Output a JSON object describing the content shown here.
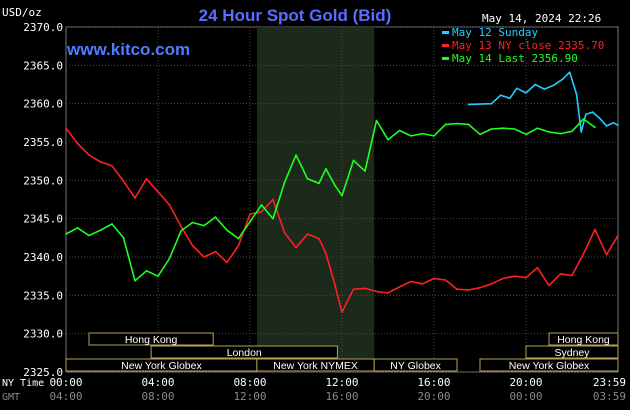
{
  "header": {
    "title": "24 Hour Spot Gold (Bid)",
    "unit": "USD/oz",
    "datetime": "May 14, 2024 22:26",
    "watermark": "www.kitco.com"
  },
  "legend": [
    {
      "label": "May 12 Sunday",
      "color": "#20d0ff"
    },
    {
      "label": "May 13 NY close 2335.70",
      "color": "#ff2020"
    },
    {
      "label": "May 14 Last 2356.90",
      "color": "#20ff20"
    }
  ],
  "chart_data": {
    "type": "line",
    "title": "24 Hour Spot Gold (Bid)",
    "ylabel": "USD/oz",
    "ylim": [
      2325,
      2370
    ],
    "yticks": [
      "2325.0",
      "2330.0",
      "2335.0",
      "2340.0",
      "2345.0",
      "2350.0",
      "2355.0",
      "2360.0",
      "2365.0",
      "2370.0"
    ],
    "xlim": [
      0,
      24
    ],
    "x_time_rows": [
      {
        "label": "NY Time",
        "ticks": [
          "00:00",
          "04:00",
          "08:00",
          "12:00",
          "16:00",
          "20:00",
          "23:59"
        ]
      },
      {
        "label": "GMT",
        "ticks": [
          "04:00",
          "08:00",
          "12:00",
          "16:00",
          "20:00",
          "00:00",
          "03:59"
        ]
      }
    ],
    "highlight_hours": [
      8.3,
      13.4
    ],
    "series": [
      {
        "name": "May 12 Sunday",
        "color": "#20d0ff",
        "x": [
          17.5,
          18.5,
          18.9,
          19.3,
          19.6,
          20.0,
          20.4,
          20.8,
          21.2,
          21.6,
          21.9,
          22.2,
          22.4,
          22.6,
          22.9,
          23.2,
          23.5,
          23.8,
          24.0
        ],
        "y": [
          2359.9,
          2360.0,
          2361.1,
          2360.7,
          2362.0,
          2361.4,
          2362.5,
          2361.9,
          2362.4,
          2363.2,
          2364.1,
          2361.2,
          2356.3,
          2358.6,
          2358.9,
          2358.1,
          2357.1,
          2357.5,
          2357.2
        ]
      },
      {
        "name": "May 13 NY close 2335.70",
        "color": "#ff2020",
        "x": [
          0,
          0.5,
          1.0,
          1.5,
          2.0,
          2.5,
          3.0,
          3.5,
          4.0,
          4.5,
          5.0,
          5.5,
          6.0,
          6.5,
          7.0,
          7.5,
          8.0,
          8.5,
          9.0,
          9.5,
          10.0,
          10.5,
          11.0,
          11.3,
          11.7,
          12.0,
          12.5,
          13.0,
          13.5,
          14.0,
          14.5,
          15.0,
          15.5,
          16.0,
          16.5,
          17.0,
          17.5,
          18.0,
          18.5,
          19.0,
          19.5,
          20.0,
          20.5,
          21.0,
          21.5,
          22.0,
          22.5,
          23.0,
          23.5,
          24.0
        ],
        "y": [
          2356.8,
          2354.8,
          2353.3,
          2352.4,
          2351.9,
          2349.9,
          2347.7,
          2350.2,
          2348.5,
          2346.8,
          2344.0,
          2341.5,
          2340.0,
          2340.7,
          2339.3,
          2341.5,
          2345.6,
          2345.9,
          2347.5,
          2343.2,
          2341.2,
          2343.0,
          2342.4,
          2340.5,
          2336.3,
          2332.8,
          2335.8,
          2335.9,
          2335.5,
          2335.3,
          2336.1,
          2336.8,
          2336.5,
          2337.2,
          2337.0,
          2335.8,
          2335.7,
          2336.0,
          2336.5,
          2337.2,
          2337.5,
          2337.3,
          2338.6,
          2336.3,
          2337.8,
          2337.6,
          2340.4,
          2343.6,
          2340.3,
          2342.8
        ]
      },
      {
        "name": "May 14 Last 2356.90",
        "color": "#20ff20",
        "x": [
          0,
          0.5,
          1.0,
          1.5,
          2.0,
          2.5,
          3.0,
          3.5,
          4.0,
          4.5,
          5.0,
          5.5,
          6.0,
          6.5,
          7.0,
          7.5,
          8.0,
          8.5,
          9.0,
          9.5,
          10.0,
          10.5,
          11.0,
          11.3,
          11.7,
          12.0,
          12.5,
          13.0,
          13.5,
          14.0,
          14.5,
          15.0,
          15.5,
          16.0,
          16.5,
          17.0,
          17.5,
          18.0,
          18.5,
          19.0,
          19.5,
          20.0,
          20.5,
          21.0,
          21.5,
          22.0,
          22.5,
          23.0
        ],
        "y": [
          2343.0,
          2343.8,
          2342.8,
          2343.5,
          2344.3,
          2342.5,
          2336.9,
          2338.2,
          2337.5,
          2339.8,
          2343.4,
          2344.5,
          2344.1,
          2345.2,
          2343.5,
          2342.4,
          2344.6,
          2346.8,
          2345.0,
          2349.7,
          2353.3,
          2350.2,
          2349.6,
          2351.5,
          2349.3,
          2348.0,
          2352.6,
          2351.2,
          2357.8,
          2355.3,
          2356.5,
          2355.8,
          2356.1,
          2355.8,
          2357.3,
          2357.4,
          2357.3,
          2356.0,
          2356.7,
          2356.8,
          2356.7,
          2356.0,
          2356.8,
          2356.3,
          2356.1,
          2356.4,
          2358.0,
          2356.9
        ]
      }
    ]
  },
  "sessions": [
    {
      "label": "Hong Kong",
      "row": 0,
      "start": 1.0,
      "end": 6.4
    },
    {
      "label": "Hong Kong",
      "row": 0,
      "start": 21.0,
      "end": 24.0
    },
    {
      "label": "London",
      "row": 1,
      "start": 3.7,
      "end": 11.8
    },
    {
      "label": "Sydney",
      "row": 1,
      "start": 20.0,
      "end": 24.0
    },
    {
      "label": "New York Globex",
      "row": 2,
      "start": 0,
      "end": 8.3
    },
    {
      "label": "New York NYMEX",
      "row": 2,
      "start": 8.3,
      "end": 13.4
    },
    {
      "label": "NY Globex",
      "row": 2,
      "start": 13.4,
      "end": 17.0
    },
    {
      "label": "New York Globex",
      "row": 2,
      "start": 18.0,
      "end": 24.0
    }
  ]
}
